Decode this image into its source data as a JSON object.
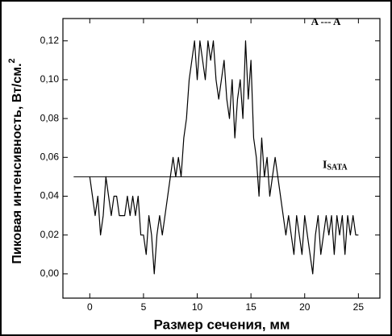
{
  "chart_data": {
    "type": "line",
    "legend_text": "A --- A",
    "xlabel": "Размер сечения, мм",
    "ylabel": "Пиковая интенсивность, Вт/см.",
    "ylabel_sup": "2",
    "hline": {
      "y": 0.05,
      "xmin": -1.5,
      "label": "I",
      "label_sub": "SATA"
    },
    "xlim": [
      -2.5,
      27
    ],
    "ylim": [
      -0.0125,
      0.1315
    ],
    "xticks": [
      0,
      5,
      10,
      15,
      20,
      25
    ],
    "yticks": [
      {
        "value": 0,
        "label": "0,00"
      },
      {
        "value": 0.02,
        "label": "0,02"
      },
      {
        "value": 0.04,
        "label": "0,04"
      },
      {
        "value": 0.06,
        "label": "0,06"
      },
      {
        "value": 0.08,
        "label": "0,08"
      },
      {
        "value": 0.1,
        "label": "0,10"
      },
      {
        "value": 0.12,
        "label": "0,12"
      }
    ],
    "color": "#000000",
    "x": [
      0,
      0.25,
      0.5,
      0.75,
      1,
      1.25,
      1.5,
      1.75,
      2,
      2.25,
      2.5,
      2.75,
      3,
      3.25,
      3.5,
      3.75,
      4,
      4.25,
      4.5,
      4.75,
      5,
      5.25,
      5.5,
      5.75,
      6,
      6.25,
      6.5,
      6.75,
      7,
      7.25,
      7.5,
      7.75,
      8,
      8.25,
      8.5,
      8.75,
      9,
      9.25,
      9.5,
      9.75,
      10,
      10.25,
      10.5,
      10.75,
      11,
      11.25,
      11.5,
      11.75,
      12,
      12.25,
      12.5,
      12.75,
      13,
      13.25,
      13.5,
      13.75,
      14,
      14.25,
      14.5,
      14.75,
      15,
      15.25,
      15.5,
      15.75,
      16,
      16.25,
      16.5,
      16.75,
      17,
      17.25,
      17.5,
      17.75,
      18,
      18.25,
      18.5,
      18.75,
      19,
      19.25,
      19.5,
      19.75,
      20,
      20.25,
      20.5,
      20.75,
      21,
      21.25,
      21.5,
      21.75,
      22,
      22.25,
      22.5,
      22.75,
      23,
      23.25,
      23.5,
      23.75,
      24,
      24.25,
      24.5,
      24.75,
      25
    ],
    "values": [
      0.05,
      0.04,
      0.03,
      0.04,
      0.02,
      0.03,
      0.05,
      0.04,
      0.03,
      0.04,
      0.04,
      0.03,
      0.03,
      0.03,
      0.04,
      0.03,
      0.04,
      0.03,
      0.04,
      0.02,
      0.02,
      0.01,
      0.03,
      0.02,
      0,
      0.02,
      0.03,
      0.02,
      0.03,
      0.04,
      0.05,
      0.06,
      0.05,
      0.06,
      0.05,
      0.07,
      0.08,
      0.1,
      0.11,
      0.12,
      0.1,
      0.12,
      0.11,
      0.1,
      0.12,
      0.11,
      0.12,
      0.1,
      0.09,
      0.1,
      0.11,
      0.09,
      0.08,
      0.1,
      0.07,
      0.09,
      0.1,
      0.08,
      0.12,
      0.09,
      0.11,
      0.07,
      0.06,
      0.04,
      0.07,
      0.05,
      0.06,
      0.04,
      0.05,
      0.06,
      0.05,
      0.04,
      0.03,
      0.02,
      0.03,
      0.02,
      0.01,
      0.03,
      0.02,
      0.01,
      0.03,
      0.02,
      0.01,
      0,
      0.02,
      0.03,
      0.01,
      0.02,
      0.03,
      0.02,
      0.03,
      0.01,
      0.03,
      0.02,
      0.03,
      0.01,
      0.03,
      0.02,
      0.03,
      0.02,
      0.02
    ]
  }
}
